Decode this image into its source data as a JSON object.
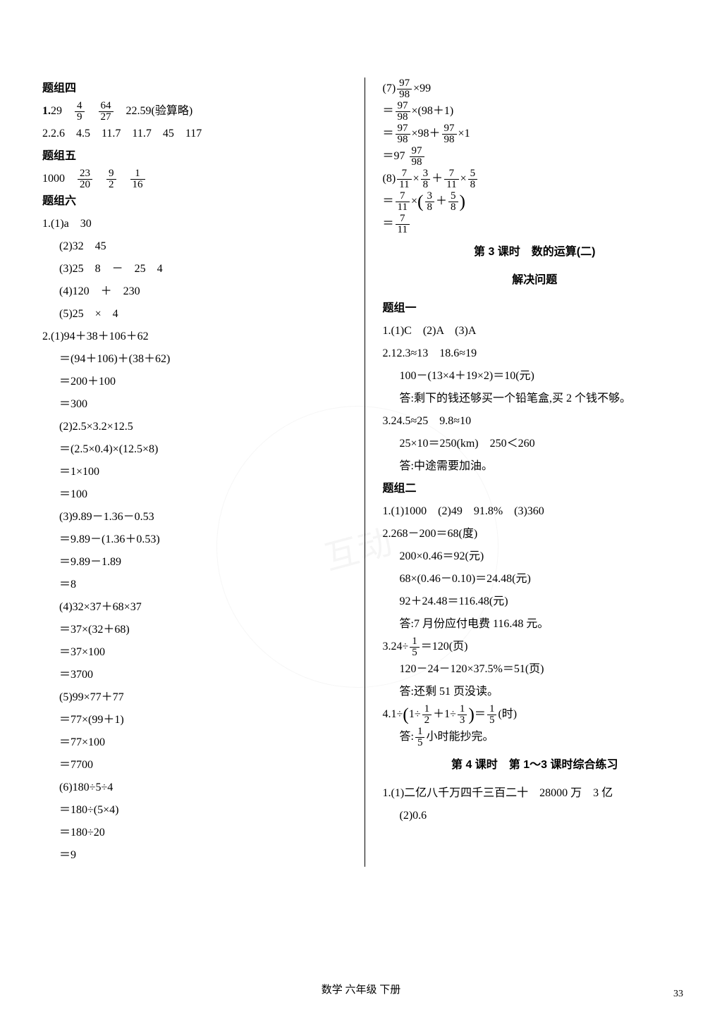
{
  "left": {
    "h1": "题组四",
    "l1a": "1.",
    "l1b": "29",
    "frac1": {
      "n": "4",
      "d": "9"
    },
    "frac2": {
      "n": "64",
      "d": "27"
    },
    "l1c": "22.59(验算略)",
    "l2": "2.2.6　4.5　11.7　11.7　45　117",
    "h2": "题组五",
    "l3a": "1000",
    "frac3": {
      "n": "23",
      "d": "20"
    },
    "frac4": {
      "n": "9",
      "d": "2"
    },
    "frac5": {
      "n": "1",
      "d": "16"
    },
    "h3": "题组六",
    "g6_1": "1.(1)a　30",
    "g6_2": "(2)32　45",
    "g6_3": "(3)25　8　－　25　4",
    "g6_4": "(4)120　＋　230",
    "g6_5": "(5)25　×　4",
    "g6_6": "2.(1)94＋38＋106＋62",
    "g6_7": "＝(94＋106)＋(38＋62)",
    "g6_8": "＝200＋100",
    "g6_9": "＝300",
    "g6_10": "(2)2.5×3.2×12.5",
    "g6_11": "＝(2.5×0.4)×(12.5×8)",
    "g6_12": "＝1×100",
    "g6_13": "＝100",
    "g6_14": "(3)9.89－1.36－0.53",
    "g6_15": "＝9.89－(1.36＋0.53)",
    "g6_16": "＝9.89－1.89",
    "g6_17": "＝8",
    "g6_18": "(4)32×37＋68×37",
    "g6_19": "＝37×(32＋68)",
    "g6_20": "＝37×100",
    "g6_21": "＝3700",
    "g6_22": "(5)99×77＋77",
    "g6_23": "＝77×(99＋1)",
    "g6_24": "＝77×100",
    "g6_25": "＝7700",
    "g6_26": "(6)180÷5÷4",
    "g6_27": "＝180÷(5×4)",
    "g6_28": "＝180÷20",
    "g6_29": "＝9"
  },
  "right": {
    "r1a": "(7)",
    "fr1": {
      "n": "97",
      "d": "98"
    },
    "r1b": "×99",
    "r2a": "＝",
    "fr2": {
      "n": "97",
      "d": "98"
    },
    "r2b": "×(98＋1)",
    "r3a": "＝",
    "fr3": {
      "n": "97",
      "d": "98"
    },
    "r3b": "×98＋",
    "fr3b": {
      "n": "97",
      "d": "98"
    },
    "r3c": "×1",
    "r4a": "＝97",
    "fr4": {
      "n": "97",
      "d": "98"
    },
    "r5a": "(8)",
    "fr5a": {
      "n": "7",
      "d": "11"
    },
    "r5b": "×",
    "fr5b": {
      "n": "3",
      "d": "8"
    },
    "r5c": "＋",
    "fr5c": {
      "n": "7",
      "d": "11"
    },
    "r5d": "×",
    "fr5d": {
      "n": "5",
      "d": "8"
    },
    "r6a": "＝",
    "fr6a": {
      "n": "7",
      "d": "11"
    },
    "r6b": "×",
    "fr6b": {
      "n": "3",
      "d": "8"
    },
    "r6c": "＋",
    "fr6c": {
      "n": "5",
      "d": "8"
    },
    "r7a": "＝",
    "fr7": {
      "n": "7",
      "d": "11"
    },
    "ch1": "第 3 课时　数的运算(二)",
    "ch2": "解决问题",
    "h4": "题组一",
    "t1_1": "1.(1)C　(2)A　(3)A",
    "t1_2": "2.12.3≈13　18.6≈19",
    "t1_3": "100－(13×4＋19×2)＝10(元)",
    "t1_4": "答:剩下的钱还够买一个铅笔盒,买 2 个钱不够。",
    "t1_5": "3.24.5≈25　9.8≈10",
    "t1_6": "25×10＝250(km)　250＜260",
    "t1_7": "答:中途需要加油。",
    "h5": "题组二",
    "t2_1": "1.(1)1000　(2)49　91.8%　(3)360",
    "t2_2": "2.268－200＝68(度)",
    "t2_3": "200×0.46＝92(元)",
    "t2_4": "68×(0.46－0.10)＝24.48(元)",
    "t2_5": "92＋24.48＝116.48(元)",
    "t2_6": "答:7 月份应付电费 116.48 元。",
    "t2_7a": "3.24÷",
    "fr8": {
      "n": "1",
      "d": "5"
    },
    "t2_7b": "＝120(页)",
    "t2_8": "120－24－120×37.5%＝51(页)",
    "t2_9": "答:还剩 51 页没读。",
    "t2_10a": "4.1÷",
    "t2_10b": "1÷",
    "fr9a": {
      "n": "1",
      "d": "2"
    },
    "t2_10c": "＋1÷",
    "fr9b": {
      "n": "1",
      "d": "3"
    },
    "t2_10d": "＝",
    "fr9c": {
      "n": "1",
      "d": "5"
    },
    "t2_10e": "(时)",
    "t2_11a": "答:",
    "fr10": {
      "n": "1",
      "d": "5"
    },
    "t2_11b": "小时能抄完。",
    "ch3": "第 4 课时　第 1～3 课时综合练习",
    "t3_1": "1.(1)二亿八千万四千三百二十　28000 万　3 亿",
    "t3_2": "(2)0.6"
  },
  "footer": "数学 六年级 下册",
  "pagenum": "33",
  "watermark": "互动"
}
